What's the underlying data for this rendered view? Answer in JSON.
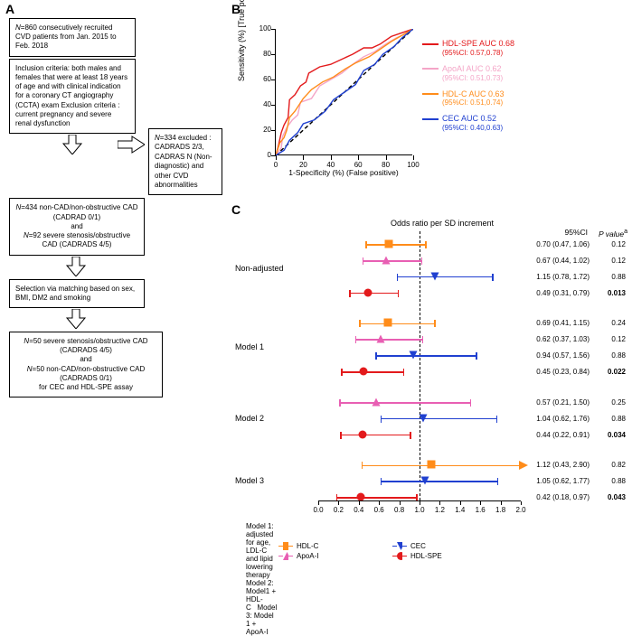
{
  "panel_labels": {
    "a": "A",
    "b": "B",
    "c": "C"
  },
  "flowchart": {
    "box1": "N=860 consecutively recruited CVD patients from Jan. 2015 to Feb. 2018",
    "box2": "Inclusion criteria: both males and females that were at least 18 years of age and with clinical indication for a coronary CT angiography (CCTA) exam Exclusion criteria : current pregnancy and severe renal dysfunction",
    "side_box": "N=334 excluded : CADRADS 2/3, CADRAS N (Non-diagnostic) and other CVD abnormalities",
    "box3": "N=434 non-CAD/non-obstructive CAD (CADRAD 0/1)\nand\nN=92 severe stenosis/obstructive CAD (CADRADS 4/5)",
    "box4": "Selection via matching based on sex, BMI, DM2 and smoking",
    "box5": "N=50 severe stenosis/obstructive CAD (CADRADS 4/5)\nand\nN=50 non-CAD/non-obstructive CAD (CADRADS 0/1)\nfor CEC and HDL-SPE assay"
  },
  "roc": {
    "ylabel": "Sensitivity (%) [True positive]",
    "xlabel": "1-Specificity (%) (False positive)",
    "xlim": [
      0,
      100
    ],
    "ylim": [
      0,
      100
    ],
    "ticks": [
      0,
      20,
      40,
      60,
      80,
      100
    ],
    "diagonal_color": "#000000",
    "curves": [
      {
        "name": "HDL-SPE",
        "color": "#e31a1c",
        "auc_label": "HDL-SPE AUC 0.68",
        "ci": "(95%CI: 0.57,0.78)",
        "points": [
          [
            0,
            0
          ],
          [
            2,
            8
          ],
          [
            4,
            18
          ],
          [
            6,
            24
          ],
          [
            9,
            30
          ],
          [
            10,
            44
          ],
          [
            14,
            48
          ],
          [
            18,
            55
          ],
          [
            22,
            58
          ],
          [
            24,
            65
          ],
          [
            32,
            70
          ],
          [
            40,
            72
          ],
          [
            48,
            76
          ],
          [
            56,
            80
          ],
          [
            64,
            85
          ],
          [
            70,
            85
          ],
          [
            76,
            88
          ],
          [
            84,
            94
          ],
          [
            92,
            97
          ],
          [
            100,
            100
          ]
        ]
      },
      {
        "name": "ApoAI",
        "color": "#f4a5c7",
        "auc_label": "ApoAI AUC 0.62",
        "ci": "(95%CI: 0.51,0.73)",
        "points": [
          [
            0,
            0
          ],
          [
            4,
            6
          ],
          [
            5,
            15
          ],
          [
            8,
            22
          ],
          [
            12,
            28
          ],
          [
            16,
            32
          ],
          [
            18,
            42
          ],
          [
            26,
            45
          ],
          [
            32,
            55
          ],
          [
            40,
            60
          ],
          [
            48,
            65
          ],
          [
            56,
            72
          ],
          [
            64,
            78
          ],
          [
            72,
            82
          ],
          [
            80,
            88
          ],
          [
            88,
            93
          ],
          [
            94,
            96
          ],
          [
            100,
            100
          ]
        ]
      },
      {
        "name": "HDL-C",
        "color": "#ff8c1a",
        "auc_label": "HDL-C AUC 0.63",
        "ci": "(95%CI: 0.51,0.74)",
        "points": [
          [
            0,
            0
          ],
          [
            3,
            10
          ],
          [
            6,
            14
          ],
          [
            8,
            20
          ],
          [
            10,
            30
          ],
          [
            14,
            35
          ],
          [
            20,
            45
          ],
          [
            26,
            52
          ],
          [
            34,
            58
          ],
          [
            42,
            62
          ],
          [
            50,
            68
          ],
          [
            58,
            73
          ],
          [
            68,
            78
          ],
          [
            76,
            84
          ],
          [
            84,
            90
          ],
          [
            92,
            95
          ],
          [
            100,
            100
          ]
        ]
      },
      {
        "name": "CEC",
        "color": "#2040d0",
        "auc_label": "CEC AUC 0.52",
        "ci": "(95%CI: 0.40,0.63)",
        "points": [
          [
            0,
            0
          ],
          [
            6,
            4
          ],
          [
            10,
            12
          ],
          [
            16,
            18
          ],
          [
            20,
            25
          ],
          [
            28,
            28
          ],
          [
            36,
            35
          ],
          [
            42,
            44
          ],
          [
            50,
            50
          ],
          [
            58,
            56
          ],
          [
            64,
            67
          ],
          [
            72,
            72
          ],
          [
            78,
            80
          ],
          [
            86,
            86
          ],
          [
            92,
            93
          ],
          [
            100,
            100
          ]
        ]
      }
    ]
  },
  "forest": {
    "title": "Odds ratio per SD increment",
    "xlim": [
      0.0,
      2.0
    ],
    "xticks": [
      0.0,
      0.2,
      0.4,
      0.6,
      0.8,
      1.0,
      1.2,
      1.4,
      1.6,
      1.8,
      2.0
    ],
    "ref_line": 1.0,
    "ci_header": "95%CI",
    "p_header": "P value",
    "p_header_sup": "a",
    "groups": [
      {
        "label": "Non-adjusted",
        "rows": [
          {
            "series": "HDL-C",
            "or": 0.7,
            "lci": 0.47,
            "uci": 1.06,
            "ci_text": "0.70 (0.47, 1.06)",
            "p": "0.12",
            "bold": false
          },
          {
            "series": "ApoA-I",
            "or": 0.67,
            "lci": 0.44,
            "uci": 1.02,
            "ci_text": "0.67 (0.44, 1.02)",
            "p": "0.12",
            "bold": false
          },
          {
            "series": "CEC",
            "or": 1.15,
            "lci": 0.78,
            "uci": 1.72,
            "ci_text": "1.15 (0.78, 1.72)",
            "p": "0.88",
            "bold": false
          },
          {
            "series": "HDL-SPE",
            "or": 0.49,
            "lci": 0.31,
            "uci": 0.79,
            "ci_text": "0.49 (0.31, 0.79)",
            "p": "0.013",
            "bold": true
          }
        ]
      },
      {
        "label": "Model 1",
        "rows": [
          {
            "series": "HDL-C",
            "or": 0.69,
            "lci": 0.41,
            "uci": 1.15,
            "ci_text": "0.69 (0.41, 1.15)",
            "p": "0.24",
            "bold": false
          },
          {
            "series": "ApoA-I",
            "or": 0.62,
            "lci": 0.37,
            "uci": 1.03,
            "ci_text": "0.62 (0.37, 1.03)",
            "p": "0.12",
            "bold": false
          },
          {
            "series": "CEC",
            "or": 0.94,
            "lci": 0.57,
            "uci": 1.56,
            "ci_text": "0.94 (0.57, 1.56)",
            "p": "0.88",
            "bold": false
          },
          {
            "series": "HDL-SPE",
            "or": 0.45,
            "lci": 0.23,
            "uci": 0.84,
            "ci_text": "0.45 (0.23, 0.84)",
            "p": "0.022",
            "bold": true
          }
        ]
      },
      {
        "label": "Model 2",
        "rows": [
          {
            "series": "ApoA-I",
            "or": 0.57,
            "lci": 0.21,
            "uci": 1.5,
            "ci_text": "0.57 (0.21, 1.50)",
            "p": "0.25",
            "bold": false
          },
          {
            "series": "CEC",
            "or": 1.04,
            "lci": 0.62,
            "uci": 1.76,
            "ci_text": "1.04 (0.62, 1.76)",
            "p": "0.88",
            "bold": false
          },
          {
            "series": "HDL-SPE",
            "or": 0.44,
            "lci": 0.22,
            "uci": 0.91,
            "ci_text": "0.44 (0.22, 0.91)",
            "p": "0.034",
            "bold": true
          }
        ]
      },
      {
        "label": "Model 3",
        "rows": [
          {
            "series": "HDL-C",
            "or": 1.12,
            "lci": 0.43,
            "uci": 2.9,
            "ci_text": "1.12 (0.43, 2.90)",
            "p": "0.82",
            "bold": false,
            "arrow": true
          },
          {
            "series": "CEC",
            "or": 1.05,
            "lci": 0.62,
            "uci": 1.77,
            "ci_text": "1.05 (0.62, 1.77)",
            "p": "0.88",
            "bold": false
          },
          {
            "series": "HDL-SPE",
            "or": 0.42,
            "lci": 0.18,
            "uci": 0.97,
            "ci_text": "0.42 (0.18, 0.97)",
            "p": "0.043",
            "bold": true
          }
        ]
      }
    ],
    "series_style": {
      "HDL-C": {
        "color": "#ff8c1a",
        "marker": "square"
      },
      "ApoA-I": {
        "color": "#e85fb3",
        "marker": "triangle-up"
      },
      "CEC": {
        "color": "#2040d0",
        "marker": "triangle-down"
      },
      "HDL-SPE": {
        "color": "#e31a1c",
        "marker": "circle"
      }
    },
    "model_notes": "Model 1: adjusted for age, LDL-C and lipid lowering therapy\nModel 2: Model1 + HDL-C    Model 3: Model 1 + ApoA-I",
    "legend_items": [
      {
        "series": "HDL-C",
        "label": "HDL-C"
      },
      {
        "series": "CEC",
        "label": "CEC"
      },
      {
        "series": "ApoA-I",
        "label": "ApoA-I"
      },
      {
        "series": "HDL-SPE",
        "label": "HDL-SPE"
      }
    ]
  }
}
